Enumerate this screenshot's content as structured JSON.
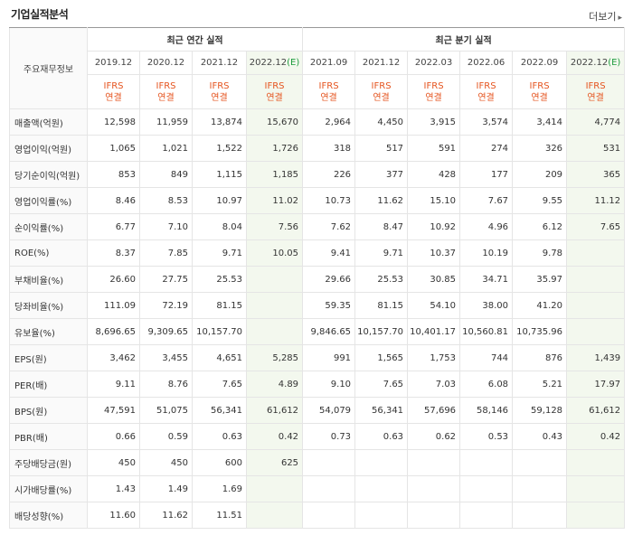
{
  "header": {
    "title": "기업실적분석",
    "more_label": "더보기",
    "more_icon": "chevron-right-icon"
  },
  "table": {
    "row_header_label": "주요재무정보",
    "group_annual": "최근 연간 실적",
    "group_quarter": "최근 분기 실적",
    "annual_periods": [
      "2019.12",
      "2020.12",
      "2021.12",
      "2022.12"
    ],
    "quarter_periods": [
      "2021.09",
      "2021.12",
      "2022.03",
      "2022.06",
      "2022.09",
      "2022.12"
    ],
    "estimate_marker": "(E)",
    "ifrs_line1": "IFRS",
    "ifrs_line2": "연결",
    "rows": [
      {
        "label": "매출액(억원)",
        "values": [
          "12,598",
          "11,959",
          "13,874",
          "15,670",
          "2,964",
          "4,450",
          "3,915",
          "3,574",
          "3,414",
          "4,774"
        ]
      },
      {
        "label": "영업이익(억원)",
        "values": [
          "1,065",
          "1,021",
          "1,522",
          "1,726",
          "318",
          "517",
          "591",
          "274",
          "326",
          "531"
        ]
      },
      {
        "label": "당기순이익(억원)",
        "values": [
          "853",
          "849",
          "1,115",
          "1,185",
          "226",
          "377",
          "428",
          "177",
          "209",
          "365"
        ]
      },
      {
        "label": "영업이익률(%)",
        "values": [
          "8.46",
          "8.53",
          "10.97",
          "11.02",
          "10.73",
          "11.62",
          "15.10",
          "7.67",
          "9.55",
          "11.12"
        ]
      },
      {
        "label": "순이익률(%)",
        "values": [
          "6.77",
          "7.10",
          "8.04",
          "7.56",
          "7.62",
          "8.47",
          "10.92",
          "4.96",
          "6.12",
          "7.65"
        ]
      },
      {
        "label": "ROE(%)",
        "values": [
          "8.37",
          "7.85",
          "9.71",
          "10.05",
          "9.41",
          "9.71",
          "10.37",
          "10.19",
          "9.78",
          ""
        ]
      },
      {
        "label": "부채비율(%)",
        "values": [
          "26.60",
          "27.75",
          "25.53",
          "",
          "29.66",
          "25.53",
          "30.85",
          "34.71",
          "35.97",
          ""
        ]
      },
      {
        "label": "당좌비율(%)",
        "values": [
          "111.09",
          "72.19",
          "81.15",
          "",
          "59.35",
          "81.15",
          "54.10",
          "38.00",
          "41.20",
          ""
        ]
      },
      {
        "label": "유보율(%)",
        "values": [
          "8,696.65",
          "9,309.65",
          "10,157.70",
          "",
          "9,846.65",
          "10,157.70",
          "10,401.17",
          "10,560.81",
          "10,735.96",
          ""
        ]
      },
      {
        "label": "EPS(원)",
        "values": [
          "3,462",
          "3,455",
          "4,651",
          "5,285",
          "991",
          "1,565",
          "1,753",
          "744",
          "876",
          "1,439"
        ]
      },
      {
        "label": "PER(배)",
        "values": [
          "9.11",
          "8.76",
          "7.65",
          "4.89",
          "9.10",
          "7.65",
          "7.03",
          "6.08",
          "5.21",
          "17.97"
        ]
      },
      {
        "label": "BPS(원)",
        "values": [
          "47,591",
          "51,075",
          "56,341",
          "61,612",
          "54,079",
          "56,341",
          "57,696",
          "58,146",
          "59,128",
          "61,612"
        ]
      },
      {
        "label": "PBR(배)",
        "values": [
          "0.66",
          "0.59",
          "0.63",
          "0.42",
          "0.73",
          "0.63",
          "0.62",
          "0.53",
          "0.43",
          "0.42"
        ]
      },
      {
        "label": "주당배당금(원)",
        "values": [
          "450",
          "450",
          "600",
          "625",
          "",
          "",
          "",
          "",
          "",
          ""
        ]
      },
      {
        "label": "시가배당률(%)",
        "values": [
          "1.43",
          "1.49",
          "1.69",
          "",
          "",
          "",
          "",
          "",
          "",
          ""
        ]
      },
      {
        "label": "배당성향(%)",
        "values": [
          "11.60",
          "11.62",
          "11.51",
          "",
          "",
          "",
          "",
          "",
          "",
          ""
        ]
      }
    ]
  },
  "colors": {
    "ifrs": "#e5541f",
    "estimate_marker": "#1c9b3b",
    "estimate_bg": "#f3f8ee"
  }
}
